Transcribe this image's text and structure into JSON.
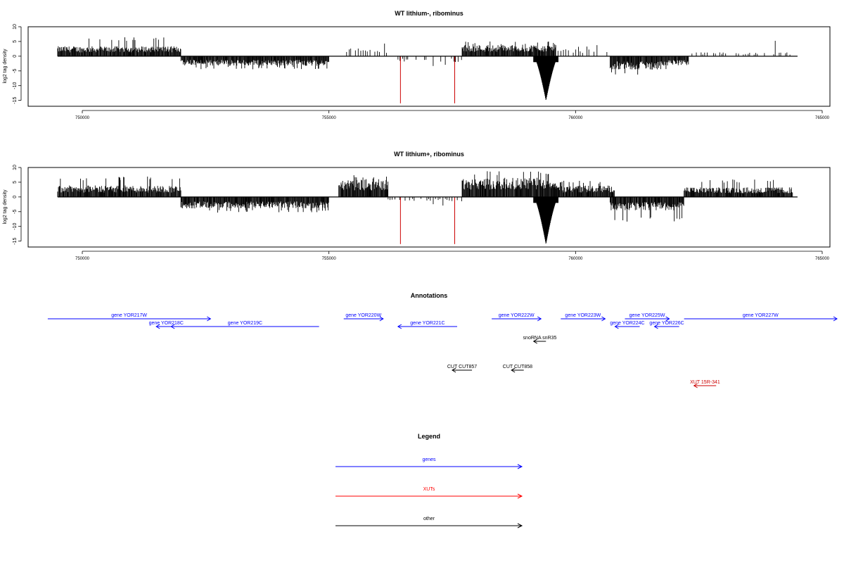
{
  "chart_data": [
    {
      "type": "bar",
      "title": "WT lithium-, ribominus",
      "ylabel": "log2 tag density",
      "xlim": [
        749500,
        764500
      ],
      "ylim": [
        -16,
        10
      ],
      "yticks": [
        10,
        5,
        0,
        -5,
        -10,
        -15
      ],
      "xticks": [
        750000,
        755000,
        760000,
        765000
      ],
      "segments": [
        {
          "x0": 749500,
          "x1": 752000,
          "sign": 1,
          "mean": 2.6,
          "peak": 6.5
        },
        {
          "x0": 752000,
          "x1": 755000,
          "sign": -1,
          "mean": 2.5,
          "peak": 4.5
        },
        {
          "x0": 755300,
          "x1": 756300,
          "sign": 1,
          "mean": 2.0,
          "peak": 4.5,
          "sparse": true
        },
        {
          "x0": 756400,
          "x1": 757700,
          "sign": -1,
          "mean": 1.5,
          "peak": 3.5,
          "sparse": true
        },
        {
          "x0": 757700,
          "x1": 759600,
          "sign": 1,
          "mean": 3.0,
          "peak": 5.0
        },
        {
          "x0": 759600,
          "x1": 760700,
          "sign": 1,
          "mean": 1.8,
          "peak": 4.0,
          "sparse": true
        },
        {
          "x0": 760700,
          "x1": 761700,
          "sign": -1,
          "mean": 3.5,
          "peak": 6.5
        },
        {
          "x0": 761700,
          "x1": 762300,
          "sign": -1,
          "mean": 2.5,
          "peak": 4.5
        },
        {
          "x0": 762300,
          "x1": 764400,
          "sign": 1,
          "mean": 1.0,
          "peak": 5.5,
          "sparse": true
        }
      ],
      "deep_peak": {
        "x": 759400,
        "width": 250,
        "depth": -15
      },
      "red_lines": [
        756450,
        757550
      ],
      "red_depth": -16
    },
    {
      "type": "bar",
      "title": "WT lithium+, ribominus",
      "ylabel": "log2 tag density",
      "xlim": [
        749500,
        764500
      ],
      "ylim": [
        -16,
        10
      ],
      "yticks": [
        10,
        5,
        0,
        -5,
        -10,
        -15
      ],
      "xticks": [
        750000,
        755000,
        760000,
        765000
      ],
      "segments": [
        {
          "x0": 749500,
          "x1": 752000,
          "sign": 1,
          "mean": 3.0,
          "peak": 7.0
        },
        {
          "x0": 752000,
          "x1": 755000,
          "sign": -1,
          "mean": 3.0,
          "peak": 5.5
        },
        {
          "x0": 755200,
          "x1": 756200,
          "sign": 1,
          "mean": 4.5,
          "peak": 7.5
        },
        {
          "x0": 756200,
          "x1": 757700,
          "sign": -1,
          "mean": 1.2,
          "peak": 3.0,
          "sparse": true
        },
        {
          "x0": 757700,
          "x1": 759600,
          "sign": 1,
          "mean": 5.0,
          "peak": 9.0
        },
        {
          "x0": 759600,
          "x1": 760800,
          "sign": 1,
          "mean": 3.0,
          "peak": 5.5
        },
        {
          "x0": 760700,
          "x1": 762200,
          "sign": -1,
          "mean": 3.5,
          "peak": 8.5
        },
        {
          "x0": 762200,
          "x1": 764400,
          "sign": 1,
          "mean": 2.5,
          "peak": 6.0
        }
      ],
      "deep_peak": {
        "x": 759400,
        "width": 250,
        "depth": -16
      },
      "red_lines": [
        756450,
        757550
      ],
      "red_depth": -16
    }
  ],
  "annotations": {
    "title": "Annotations",
    "genes": [
      {
        "label": "gene YOR217W",
        "x0": 749300,
        "x1": 752600,
        "strand": "+",
        "row": 0
      },
      {
        "label": "gene YOR218C",
        "x0": 751500,
        "x1": 751900,
        "strand": "-",
        "row": 1
      },
      {
        "label": "gene YOR219C",
        "x0": 751800,
        "x1": 754800,
        "strand": "-",
        "row": 1
      },
      {
        "label": "gene YOR220W",
        "x0": 755300,
        "x1": 756100,
        "strand": "+",
        "row": 0
      },
      {
        "label": "gene YOR221C",
        "x0": 756400,
        "x1": 757600,
        "strand": "-",
        "row": 1
      },
      {
        "label": "gene YOR222W",
        "x0": 758300,
        "x1": 759300,
        "strand": "+",
        "row": 0
      },
      {
        "label": "gene YOR223W",
        "x0": 759700,
        "x1": 760600,
        "strand": "+",
        "row": 0
      },
      {
        "label": "gene YOR224C",
        "x0": 760800,
        "x1": 761300,
        "strand": "-",
        "row": 1
      },
      {
        "label": "gene YOR225W",
        "x0": 761000,
        "x1": 761900,
        "strand": "+",
        "row": 0
      },
      {
        "label": "gene YOR226C",
        "x0": 761600,
        "x1": 762100,
        "strand": "-",
        "row": 1
      },
      {
        "label": "gene YOR227W",
        "x0": 762200,
        "x1": 765300,
        "strand": "+",
        "row": 0
      }
    ],
    "other": [
      {
        "label": "snoRNA snR35",
        "x0": 759150,
        "x1": 759400,
        "strand": "-",
        "row": 2
      },
      {
        "label": "CUT CUT857",
        "x0": 757500,
        "x1": 757900,
        "strand": "-",
        "row": 4
      },
      {
        "label": "CUT CUT858",
        "x0": 758700,
        "x1": 758950,
        "strand": "-",
        "row": 4
      }
    ],
    "xuts": [
      {
        "label": "XUT 15R-341",
        "x0": 762400,
        "x1": 762850,
        "strand": "-",
        "row": 5
      }
    ]
  },
  "legend": {
    "title": "Legend",
    "items": [
      {
        "label": "genes",
        "color": "#0000ff"
      },
      {
        "label": "XUTs",
        "color": "#ff0000"
      },
      {
        "label": "other",
        "color": "#000000"
      }
    ]
  },
  "colors": {
    "gene": "#0000ff",
    "xut": "#cc0000",
    "other": "#000000",
    "red_line": "#cc0000"
  }
}
